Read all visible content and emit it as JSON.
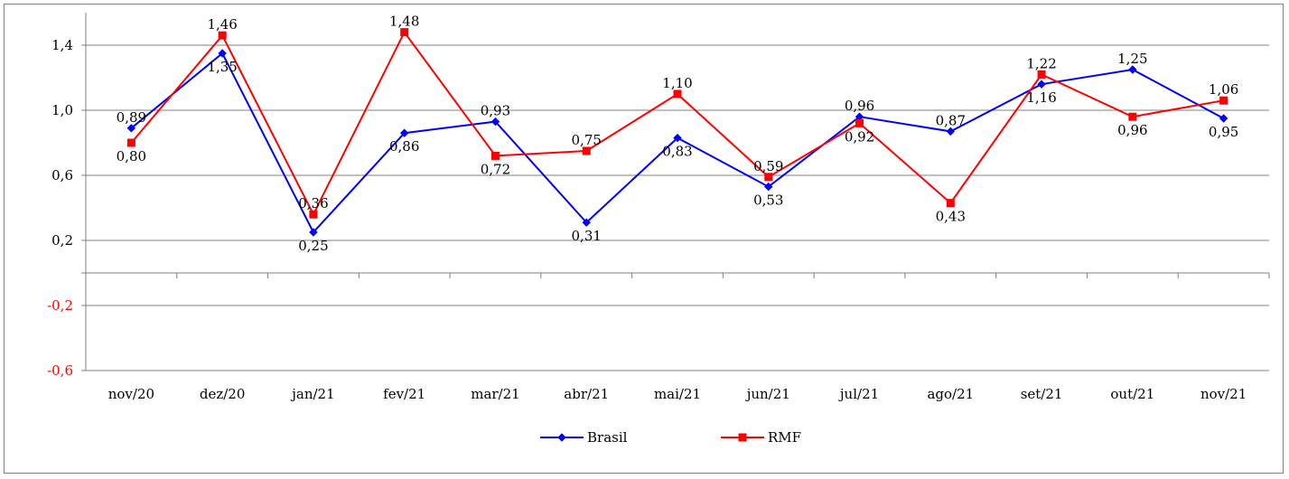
{
  "chart_data": {
    "type": "line",
    "categories": [
      "nov/20",
      "dez/20",
      "jan/21",
      "fev/21",
      "mar/21",
      "abr/21",
      "mai/21",
      "jun/21",
      "jul/21",
      "ago/21",
      "set/21",
      "out/21",
      "nov/21"
    ],
    "series": [
      {
        "name": "Brasil",
        "color": "#0000ff",
        "marker": "diamond",
        "values": [
          0.89,
          1.35,
          0.25,
          0.86,
          0.93,
          0.31,
          0.83,
          0.53,
          0.96,
          0.87,
          1.16,
          1.25,
          0.95
        ],
        "labels": [
          "0,89",
          "1,35",
          "0,25",
          "0,86",
          "0,93",
          "0,31",
          "0,83",
          "0,53",
          "0,96",
          "0,87",
          "1,16",
          "1,25",
          "0,95"
        ]
      },
      {
        "name": "RMF",
        "color": "#ff0000",
        "marker": "square",
        "values": [
          0.8,
          1.46,
          0.36,
          1.48,
          0.72,
          0.75,
          1.1,
          0.59,
          0.92,
          0.43,
          1.22,
          0.96,
          1.06
        ],
        "labels": [
          "0,80",
          "1,46",
          "0,36",
          "1,48",
          "0,72",
          "0,75",
          "1,10",
          "0,59",
          "0,92",
          "0,43",
          "1,22",
          "0,96",
          "1,06"
        ]
      }
    ],
    "ylim": [
      -0.6,
      1.6
    ],
    "yticks": [
      {
        "value": 1.4,
        "label": "1,4"
      },
      {
        "value": 1.0,
        "label": "1,0"
      },
      {
        "value": 0.6,
        "label": "0,6"
      },
      {
        "value": 0.2,
        "label": "0,2"
      },
      {
        "value": -0.2,
        "label": "-0,2"
      },
      {
        "value": -0.6,
        "label": "-0,6"
      }
    ],
    "grid": true,
    "legend": "bottom-center",
    "title": "",
    "xlabel": "",
    "ylabel": ""
  }
}
